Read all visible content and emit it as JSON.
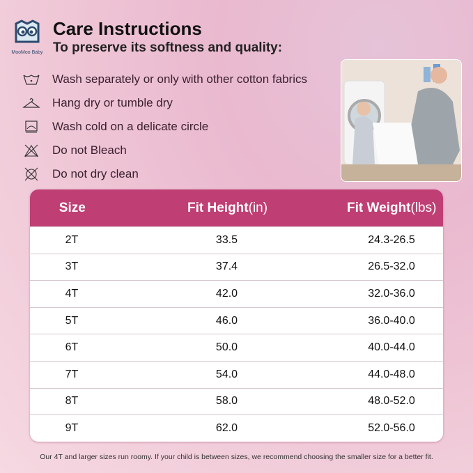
{
  "brand": {
    "name": "MooMoo Baby"
  },
  "header": {
    "title": "Care Instructions",
    "subtitle": "To preserve its softness and quality:"
  },
  "care": [
    {
      "icon": "wash-tub-icon",
      "text": "Wash separately or only with other cotton fabrics"
    },
    {
      "icon": "hanger-icon",
      "text": "Hang dry or tumble dry"
    },
    {
      "icon": "tumble-dry-icon",
      "text": "Wash cold on a delicate circle"
    },
    {
      "icon": "no-bleach-icon",
      "text": "Do not Bleach"
    },
    {
      "icon": "no-dry-clean-icon",
      "text": "Do not dry clean"
    }
  ],
  "table": {
    "header_color": "#bf3f74",
    "columns": [
      {
        "main": "Size",
        "unit": ""
      },
      {
        "main": "Fit Height",
        "unit": "(in)"
      },
      {
        "main": "Fit Weight",
        "unit": "(lbs)"
      }
    ],
    "rows": [
      [
        "2T",
        "33.5",
        "24.3-26.5"
      ],
      [
        "3T",
        "37.4",
        "26.5-32.0"
      ],
      [
        "4T",
        "42.0",
        "32.0-36.0"
      ],
      [
        "5T",
        "46.0",
        "36.0-40.0"
      ],
      [
        "6T",
        "50.0",
        "40.0-44.0"
      ],
      [
        "7T",
        "54.0",
        "44.0-48.0"
      ],
      [
        "8T",
        "58.0",
        "48.0-52.0"
      ],
      [
        "9T",
        "62.0",
        "52.0-56.0"
      ]
    ]
  },
  "note": "Our 4T and larger sizes run roomy. If your child is between sizes, we recommend choosing the smaller size for a better fit."
}
